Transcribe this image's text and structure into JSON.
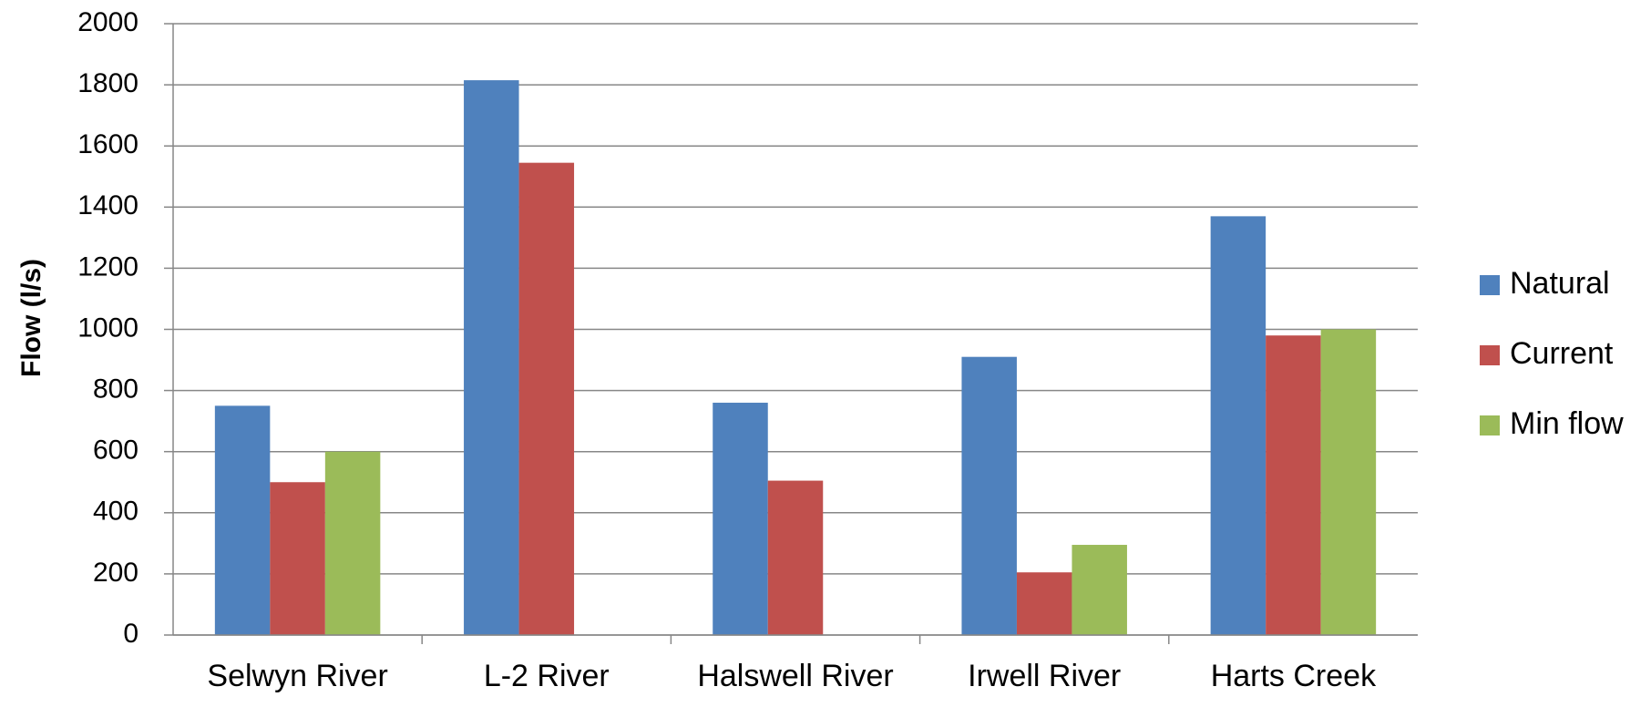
{
  "chart_data": {
    "type": "bar",
    "title": "",
    "xlabel": "",
    "ylabel": "Flow (l/s)",
    "ylim": [
      0,
      2000
    ],
    "yticks": [
      0,
      200,
      400,
      600,
      800,
      1000,
      1200,
      1400,
      1600,
      1800,
      2000
    ],
    "grid": "horizontal",
    "legend_position": "right",
    "categories": [
      "Selwyn River",
      "L-2 River",
      "Halswell River",
      "Irwell River",
      "Harts Creek"
    ],
    "series": [
      {
        "name": "Natural",
        "color": "#4F81BD",
        "values": [
          750,
          1815,
          760,
          910,
          1370
        ]
      },
      {
        "name": "Current",
        "color": "#C0504D",
        "values": [
          500,
          1545,
          505,
          205,
          980
        ]
      },
      {
        "name": "Min flow",
        "color": "#9BBB59",
        "values": [
          600,
          null,
          null,
          295,
          1000
        ]
      }
    ]
  }
}
